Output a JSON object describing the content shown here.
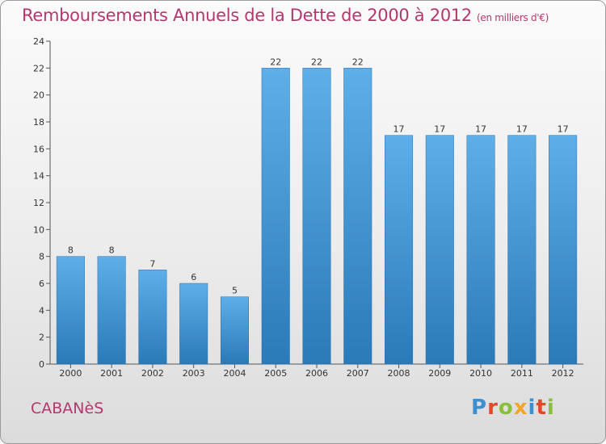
{
  "header": {
    "title": "Remboursements Annuels de la Dette de 2000 à 2012",
    "subtitle": "(en milliers d'€)"
  },
  "footer": {
    "location": "CABANèS",
    "logo_text": "Proxiti",
    "logo_colors": [
      "#3d8fce",
      "#e8452c",
      "#8bbe3b",
      "#f2a52a",
      "#3d8fce",
      "#e8452c",
      "#8bbe3b"
    ]
  },
  "chart_data": {
    "type": "bar",
    "categories": [
      "2000",
      "2001",
      "2002",
      "2003",
      "2004",
      "2005",
      "2006",
      "2007",
      "2008",
      "2009",
      "2010",
      "2011",
      "2012"
    ],
    "values": [
      8,
      8,
      7,
      6,
      5,
      22,
      22,
      22,
      17,
      17,
      17,
      17,
      17
    ],
    "ylim": [
      0,
      24
    ],
    "yticks": [
      0,
      2,
      4,
      6,
      8,
      10,
      12,
      14,
      16,
      18,
      20,
      22,
      24
    ],
    "grid": false,
    "colors": {
      "bar_light": "#5eaee8",
      "bar_dark": "#2b7ab8",
      "axis": "#555555",
      "label": "#333333"
    }
  }
}
